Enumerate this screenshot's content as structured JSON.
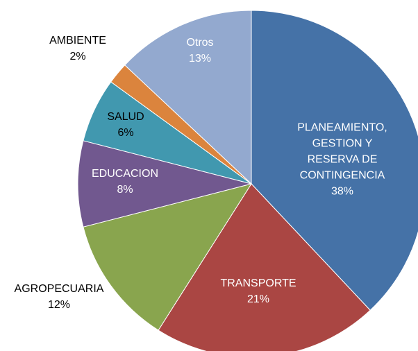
{
  "chart_data": {
    "type": "pie",
    "categories": [
      "PLANEAMIENTO, GESTION Y RESERVA DE CONTINGENCIA",
      "TRANSPORTE",
      "AGROPECUARIA",
      "EDUCACION",
      "SALUD",
      "AMBIENTE",
      "Otros"
    ],
    "values": [
      38,
      21,
      12,
      8,
      6,
      2,
      13
    ],
    "value_labels": [
      "38%",
      "21%",
      "12%",
      "8%",
      "6%",
      "2%",
      "13%"
    ],
    "colors": [
      "#4572a7",
      "#aa4643",
      "#89a54e",
      "#71588f",
      "#4198af",
      "#db843d",
      "#93a9cf"
    ]
  }
}
